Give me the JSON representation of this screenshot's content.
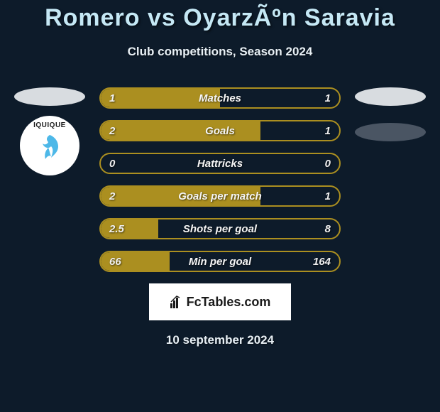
{
  "title": "Romero vs OyarzÃºn Saravia",
  "subtitle": "Club competitions, Season 2024",
  "date": "10 september 2024",
  "branding": {
    "text": "FcTables.com"
  },
  "colors": {
    "background": "#0d1b2a",
    "bar_fill": "#ab8f20",
    "bar_border": "#ab8f20",
    "title_color": "#c5e8f5",
    "text_color": "#e8f0f5",
    "avatar_left": "#d8dce0",
    "avatar_right": "#d8dce0",
    "pill_right": "#4a5563",
    "badge_bg": "#ffffff",
    "branding_bg": "#ffffff",
    "branding_text": "#1a1a1a"
  },
  "badge": {
    "label": "IQUIQUE",
    "dragon_color": "#4db8e8"
  },
  "stats": [
    {
      "label": "Matches",
      "left_val": "1",
      "right_val": "1",
      "left_pct": 50,
      "right_pct": 0
    },
    {
      "label": "Goals",
      "left_val": "2",
      "right_val": "1",
      "left_pct": 67,
      "right_pct": 0
    },
    {
      "label": "Hattricks",
      "left_val": "0",
      "right_val": "0",
      "left_pct": 0,
      "right_pct": 0
    },
    {
      "label": "Goals per match",
      "left_val": "2",
      "right_val": "1",
      "left_pct": 67,
      "right_pct": 0
    },
    {
      "label": "Shots per goal",
      "left_val": "2.5",
      "right_val": "8",
      "left_pct": 24,
      "right_pct": 0
    },
    {
      "label": "Min per goal",
      "left_val": "66",
      "right_val": "164",
      "left_pct": 29,
      "right_pct": 0
    }
  ]
}
